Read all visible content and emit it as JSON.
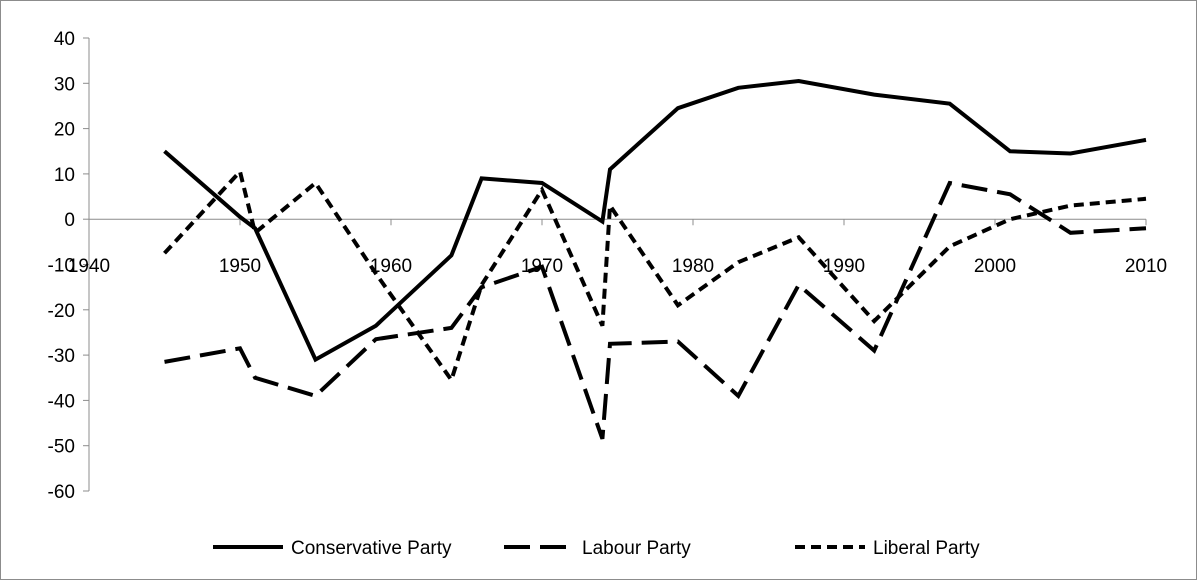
{
  "chart_data": {
    "type": "line",
    "title": "",
    "xlabel": "",
    "ylabel": "",
    "xlim": [
      1940,
      2010
    ],
    "ylim": [
      -60,
      40
    ],
    "x_ticks": [
      1940,
      1950,
      1960,
      1970,
      1980,
      1990,
      2000,
      2010
    ],
    "y_ticks": [
      40,
      30,
      20,
      10,
      0,
      -10,
      -20,
      -30,
      -40,
      -50,
      -60
    ],
    "x_tick_labels": [
      "1940",
      "1950",
      "1960",
      "1970",
      "1980",
      "1990",
      "2000",
      "2010"
    ],
    "y_tick_labels": [
      "40",
      "30",
      "20",
      "10",
      "0",
      "-10",
      "-20",
      "-30",
      "-40",
      "-50",
      "-60"
    ],
    "grid": false,
    "legend_position": "bottom",
    "series": [
      {
        "name": "Conservative Party",
        "style": "solid",
        "color": "#000000",
        "points": [
          [
            1945,
            15
          ],
          [
            1950,
            0.5
          ],
          [
            1951,
            -2
          ],
          [
            1955,
            -31
          ],
          [
            1959,
            -23.5
          ],
          [
            1964,
            -8
          ],
          [
            1966,
            9
          ],
          [
            1970,
            8
          ],
          [
            1974,
            -0.5
          ],
          [
            1974.5,
            11
          ],
          [
            1979,
            24.5
          ],
          [
            1983,
            29
          ],
          [
            1987,
            30.5
          ],
          [
            1992,
            27.5
          ],
          [
            1997,
            25.5
          ],
          [
            2001,
            15
          ],
          [
            2005,
            14.5
          ],
          [
            2010,
            17.5
          ]
        ]
      },
      {
        "name": "Labour Party",
        "style": "dashed",
        "color": "#000000",
        "points": [
          [
            1945,
            -31.5
          ],
          [
            1950,
            -28.5
          ],
          [
            1951,
            -35
          ],
          [
            1955,
            -39
          ],
          [
            1959,
            -26.5
          ],
          [
            1964,
            -24
          ],
          [
            1966,
            -15
          ],
          [
            1970,
            -10.5
          ],
          [
            1974,
            -48.5
          ],
          [
            1974.5,
            -27.5
          ],
          [
            1979,
            -27
          ],
          [
            1983,
            -39
          ],
          [
            1987,
            -14.5
          ],
          [
            1992,
            -29
          ],
          [
            1997,
            8
          ],
          [
            2001,
            5.5
          ],
          [
            2005,
            -3
          ],
          [
            2010,
            -2
          ]
        ]
      },
      {
        "name": "Liberal Party",
        "style": "dotted",
        "color": "#000000",
        "points": [
          [
            1945,
            -7.5
          ],
          [
            1950,
            10.5
          ],
          [
            1951,
            -3
          ],
          [
            1955,
            8
          ],
          [
            1959,
            -12
          ],
          [
            1964,
            -35.5
          ],
          [
            1966,
            -14.5
          ],
          [
            1970,
            6.5
          ],
          [
            1974,
            -23.5
          ],
          [
            1974.5,
            3
          ],
          [
            1979,
            -19
          ],
          [
            1983,
            -9.5
          ],
          [
            1987,
            -4
          ],
          [
            1992,
            -22.5
          ],
          [
            1997,
            -6
          ],
          [
            2001,
            0
          ],
          [
            2005,
            3
          ],
          [
            2010,
            4.5
          ]
        ]
      }
    ]
  }
}
